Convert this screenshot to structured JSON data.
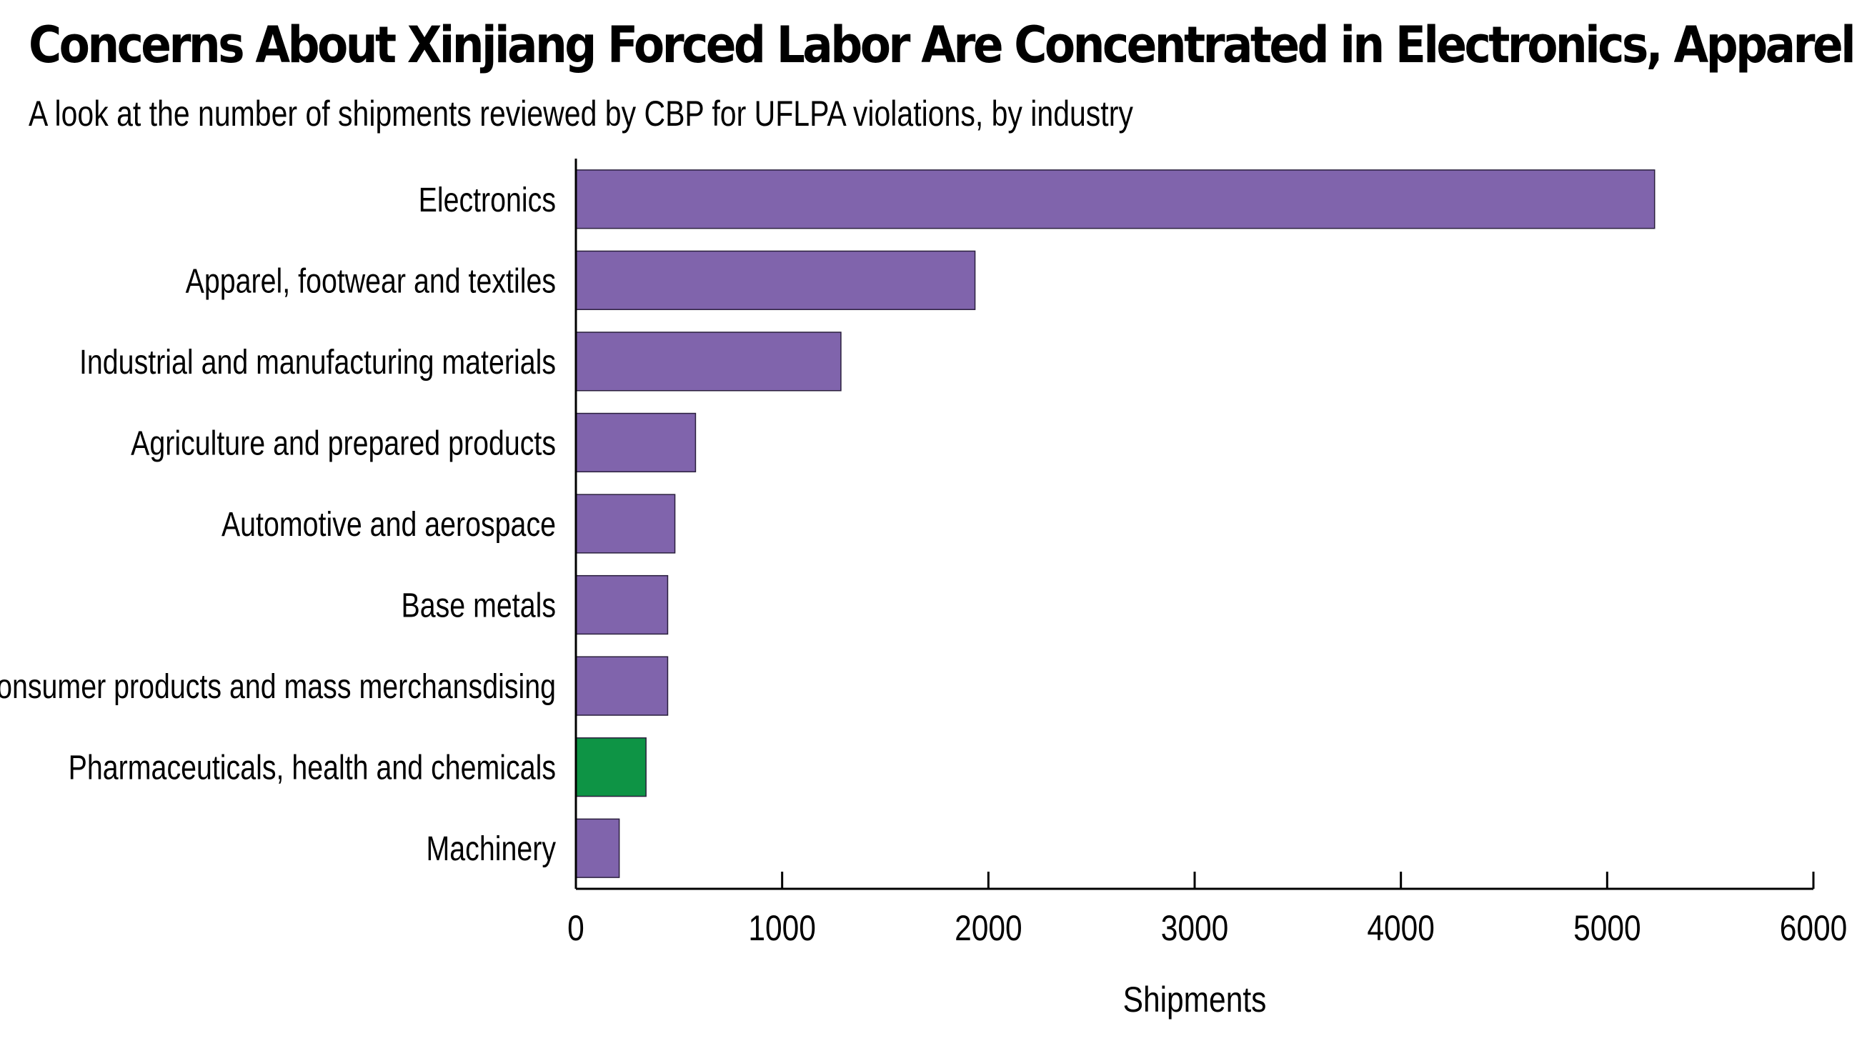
{
  "title": "Concerns About Xinjiang Forced Labor Are Concentrated in Electronics, Apparel",
  "subtitle": "A look at the number of shipments reviewed by CBP for UFLPA violations, by industry",
  "chart_data": {
    "type": "bar",
    "orientation": "horizontal",
    "title": "Concerns About Xinjiang Forced Labor Are Concentrated in Electronics, Apparel",
    "subtitle": "A look at the number of shipments reviewed by CBP for UFLPA violations, by industry",
    "xlabel": "Shipments",
    "ylabel": "",
    "xlim": [
      0,
      6000
    ],
    "xticks": [
      0,
      1000,
      2000,
      3000,
      4000,
      5000,
      6000
    ],
    "grid": false,
    "categories": [
      "Electronics",
      "Apparel, footwear and textiles",
      "Industrial and manufacturing materials",
      "Agriculture and prepared products",
      "Automotive and aerospace",
      "Base metals",
      "Consumer products and mass merchansdising",
      "Pharmaceuticals, health and chemicals",
      "Machinery"
    ],
    "values": [
      5230,
      1935,
      1285,
      580,
      480,
      445,
      445,
      340,
      210
    ],
    "colors": [
      "#8064ac",
      "#8064ac",
      "#8064ac",
      "#8064ac",
      "#8064ac",
      "#8064ac",
      "#8064ac",
      "#0e9445",
      "#8064ac"
    ]
  }
}
